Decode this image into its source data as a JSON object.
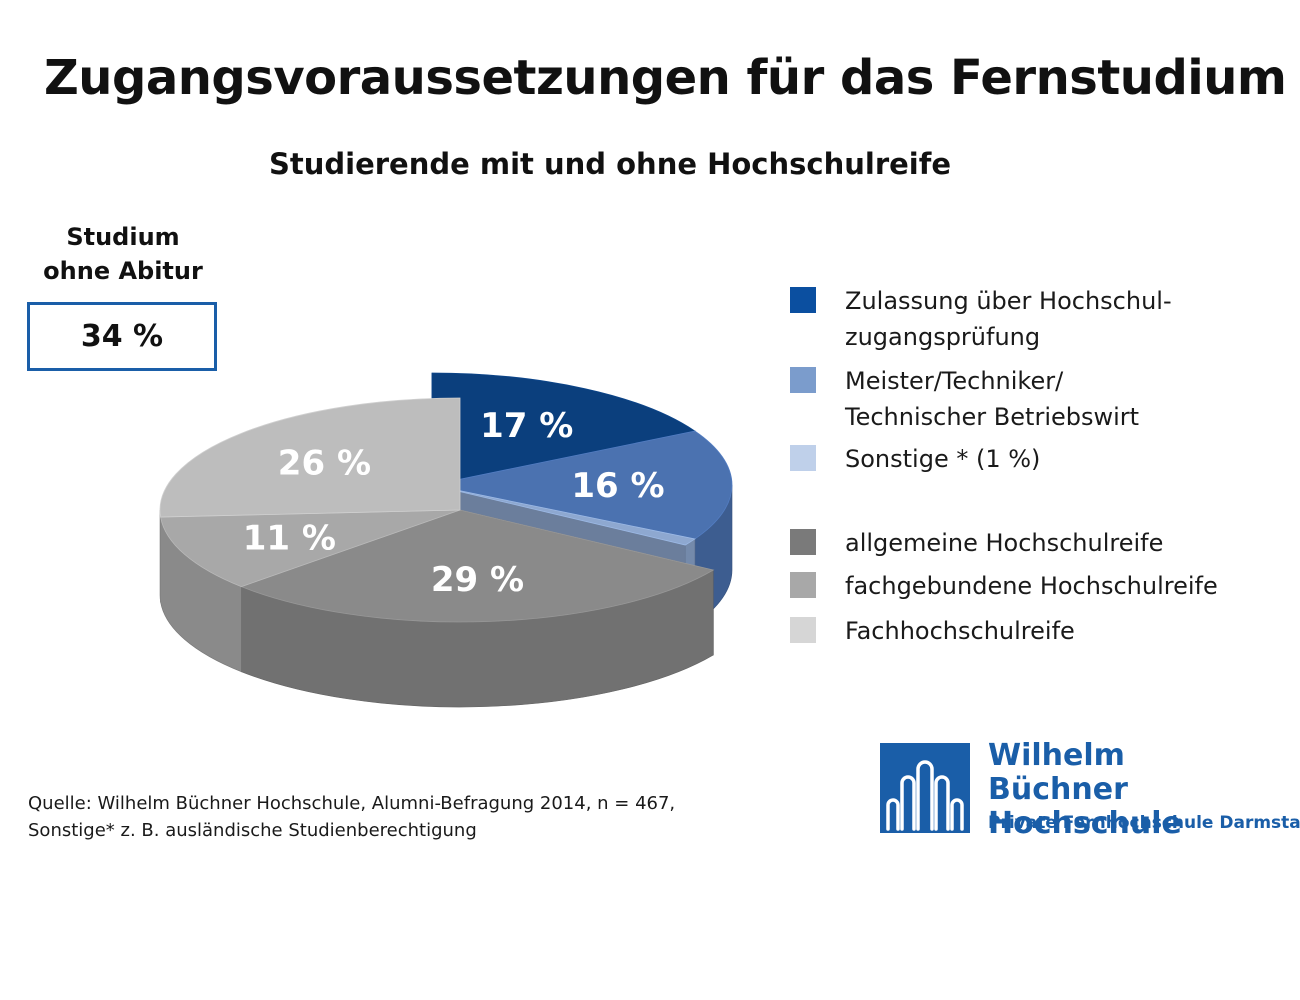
{
  "header": {
    "title": "Zugangsvoraussetzungen für das Fernstudium",
    "subtitle": "Studierende mit und ohne Hochschulreife"
  },
  "callout": {
    "label_line1": "Studium",
    "label_line2": "ohne Abitur",
    "value": "34 %"
  },
  "chart_data": {
    "type": "pie",
    "title": "Studierende mit und ohne Hochschulreife",
    "unit": "%",
    "slices": [
      {
        "label": "Zulassung über Hochschulzugangsprüfung",
        "value": 17,
        "value_label": "17 %",
        "color": "#0b3f7d",
        "exploded": true,
        "group": "ohne Abitur"
      },
      {
        "label": "Meister/Techniker/Technischer Betriebswirt",
        "value": 16,
        "value_label": "16 %",
        "color": "#4b72b0",
        "exploded": true,
        "group": "ohne Abitur"
      },
      {
        "label": "Sonstige * (1 %)",
        "value": 1,
        "value_label": "",
        "color": "#8ea8d0",
        "exploded": true,
        "group": "ohne Abitur"
      },
      {
        "label": "allgemeine Hochschulreife",
        "value": 29,
        "value_label": "29 %",
        "color": "#8a8a8a",
        "exploded": false,
        "group": "mit Hochschulreife"
      },
      {
        "label": "fachgebundene Hochschulreife",
        "value": 11,
        "value_label": "11 %",
        "color": "#a8a8a8",
        "exploded": false,
        "group": "mit Hochschulreife"
      },
      {
        "label": "Fachhochschulreife",
        "value": 26,
        "value_label": "26 %",
        "color": "#bdbdbd",
        "exploded": false,
        "group": "mit Hochschulreife"
      }
    ],
    "legend_position": "right"
  },
  "legend": {
    "items": [
      {
        "text": "Zulassung über Hochschul-\nzugangsprüfung",
        "color": "#0b4fa0"
      },
      {
        "text": "Meister/Techniker/\nTechnischer Betriebswirt",
        "color": "#7b9ccc"
      },
      {
        "text": "Sonstige * (1 %)",
        "color": "#bfd0ea"
      },
      {
        "text": "allgemeine Hochschulreife",
        "color": "#7a7a7a"
      },
      {
        "text": "fachgebundene Hochschulreife",
        "color": "#a8a8a8"
      },
      {
        "text": "Fachhochschulreife",
        "color": "#d6d6d6"
      }
    ]
  },
  "footer": {
    "source_line1": "Quelle: Wilhelm Büchner Hochschule, Alumni-Befragung 2014, n = 467,",
    "source_line2": "Sonstige* z. B. ausländische Studienberechtigung"
  },
  "logo": {
    "name_line1": "Wilhelm Büchner",
    "name_line2": "Hochschule",
    "tagline": "Private Fernhochschule Darmstadt",
    "color": "#1a5ea8"
  }
}
